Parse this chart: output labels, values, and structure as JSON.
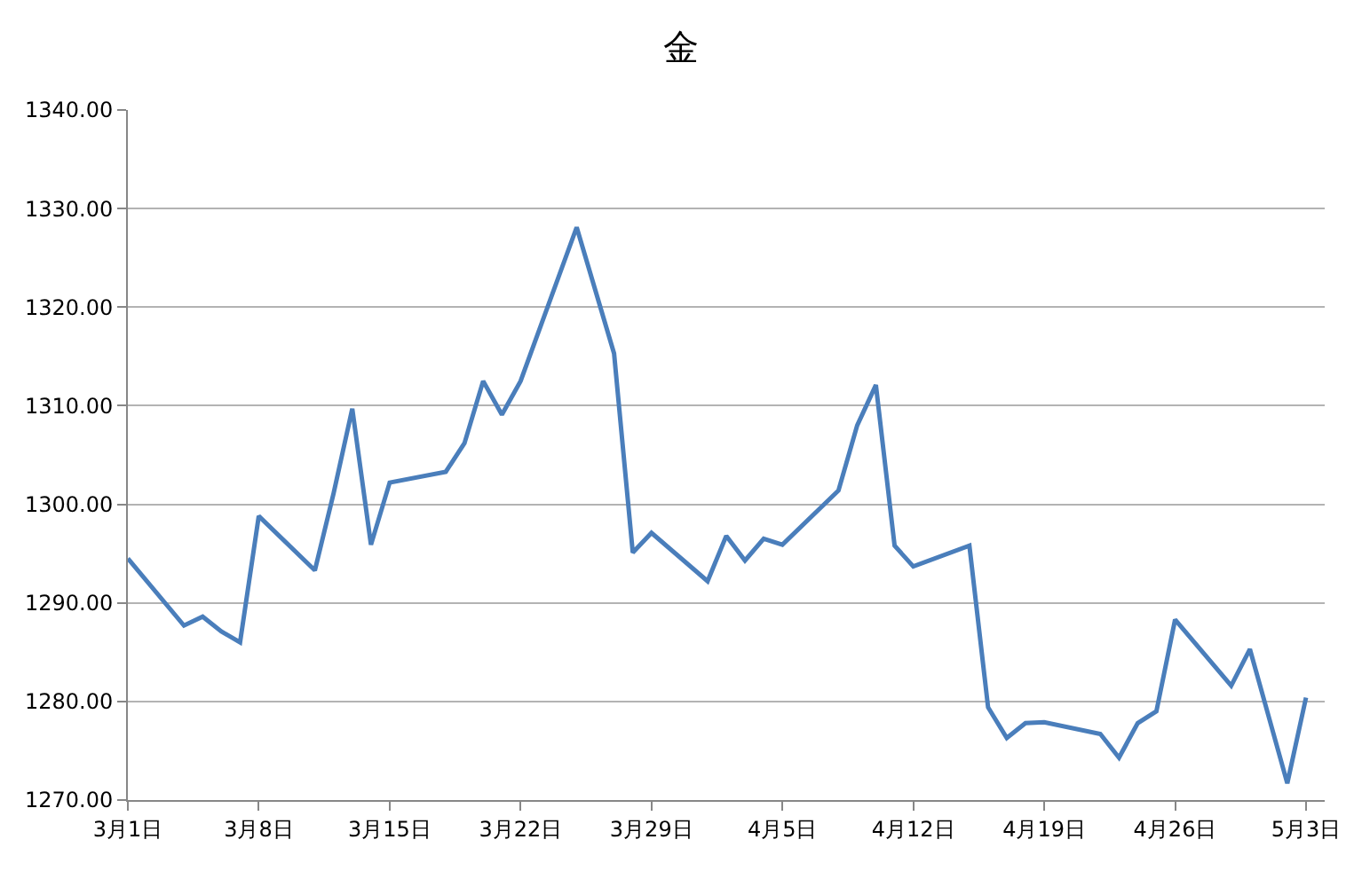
{
  "chart_data": {
    "type": "line",
    "title": "金",
    "x": [
      "--03-01",
      "--03-04",
      "--03-05",
      "--03-06",
      "--03-07",
      "--03-08",
      "--03-11",
      "--03-12",
      "--03-13",
      "--03-14",
      "--03-15",
      "--03-18",
      "--03-19",
      "--03-20",
      "--03-21",
      "--03-22",
      "--03-25",
      "--03-27",
      "--03-28",
      "--03-29",
      "--04-01",
      "--04-02",
      "--04-03",
      "--04-04",
      "--04-05",
      "--04-08",
      "--04-09",
      "--04-10",
      "--04-11",
      "--04-12",
      "--04-15",
      "--04-16",
      "--04-17",
      "--04-18",
      "--04-19",
      "--04-22",
      "--04-23",
      "--04-24",
      "--04-25",
      "--04-26",
      "--04-29",
      "--04-30",
      "--05-02",
      "--05-03"
    ],
    "series": [
      {
        "color": "#4a7ebb",
        "values": [
          1294.5,
          1287.7,
          1288.6,
          1287.1,
          1286.0,
          1298.8,
          1293.3,
          1301.1,
          1309.7,
          1295.9,
          1302.2,
          1303.3,
          1306.2,
          1312.5,
          1309.1,
          1312.5,
          1328.1,
          1315.3,
          1295.1,
          1297.1,
          1292.2,
          1296.8,
          1294.3,
          1296.5,
          1295.9,
          1301.4,
          1308.0,
          1312.1,
          1295.8,
          1293.7,
          1295.8,
          1279.4,
          1276.3,
          1277.8,
          1277.9,
          1276.7,
          1274.3,
          1277.8,
          1279.0,
          1288.3,
          1281.6,
          1285.3,
          1271.7,
          1280.4
        ]
      }
    ],
    "xlim": [
      "--03-01",
      "--05-04"
    ],
    "xticks": [
      {
        "value": "--03-01",
        "label": "3月1日"
      },
      {
        "value": "--03-08",
        "label": "3月8日"
      },
      {
        "value": "--03-15",
        "label": "3月15日"
      },
      {
        "value": "--03-22",
        "label": "3月22日"
      },
      {
        "value": "--03-29",
        "label": "3月29日"
      },
      {
        "value": "--04-05",
        "label": "4月5日"
      },
      {
        "value": "--04-12",
        "label": "4月12日"
      },
      {
        "value": "--04-19",
        "label": "4月19日"
      },
      {
        "value": "--04-26",
        "label": "4月26日"
      },
      {
        "value": "--05-03",
        "label": "5月3日"
      }
    ],
    "ylim": [
      1270,
      1340
    ],
    "yticks": [
      {
        "value": 1270,
        "label": "1270.00"
      },
      {
        "value": 1280,
        "label": "1280.00"
      },
      {
        "value": 1290,
        "label": "1290.00"
      },
      {
        "value": 1300,
        "label": "1300.00"
      },
      {
        "value": 1310,
        "label": "1310.00"
      },
      {
        "value": 1320,
        "label": "1320.00"
      },
      {
        "value": 1330,
        "label": "1330.00"
      },
      {
        "value": 1340,
        "label": "1340.00"
      }
    ],
    "grid": "y",
    "marker": "none",
    "line_style": "solid"
  }
}
